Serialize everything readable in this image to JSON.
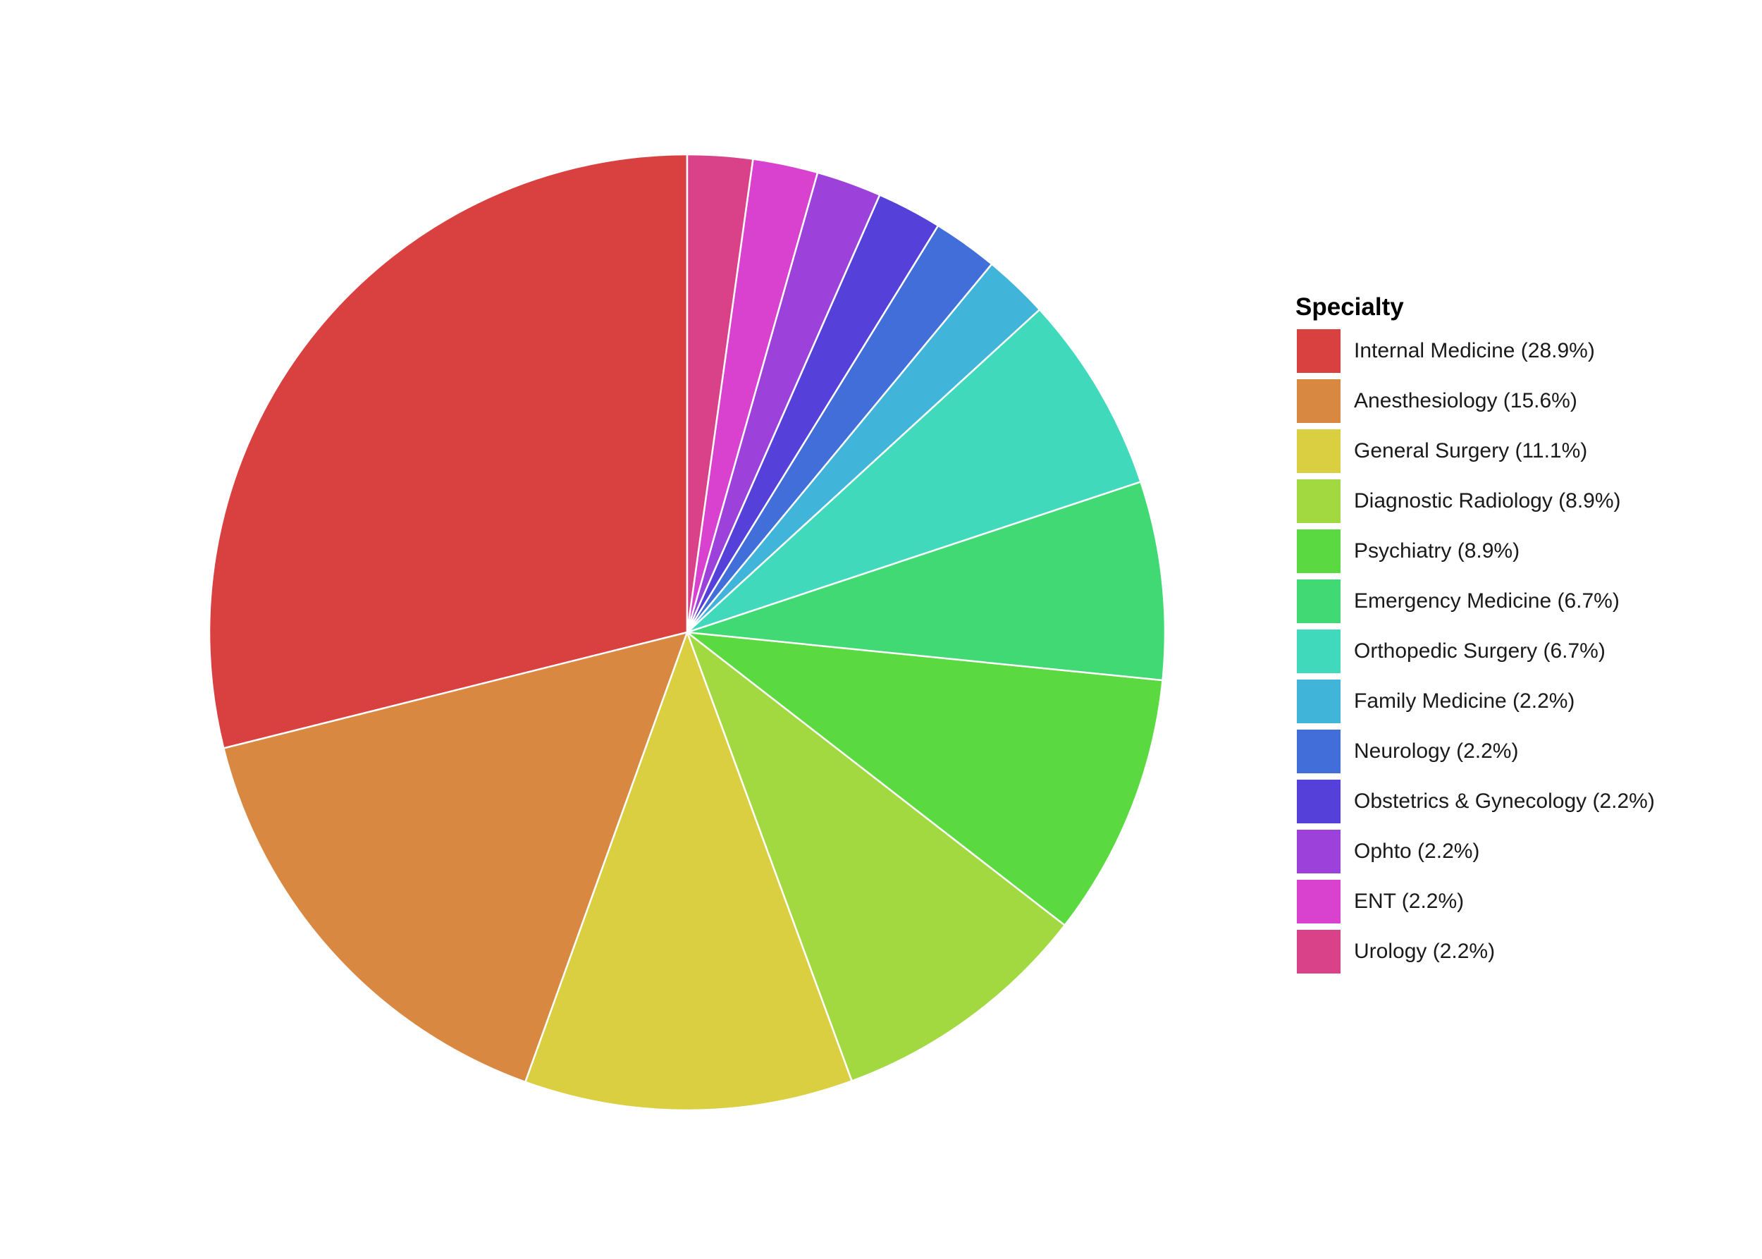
{
  "chart_data": {
    "type": "pie",
    "title": "",
    "legend_title": "Specialty",
    "legend_position": "right",
    "slice_border_color": "#ffffff",
    "background": "#ffffff",
    "start": "12 o'clock",
    "direction": "counter-clockwise",
    "categories": [
      "Internal Medicine",
      "Anesthesiology",
      "General Surgery",
      "Diagnostic Radiology",
      "Psychiatry",
      "Emergency Medicine",
      "Orthopedic Surgery",
      "Family Medicine",
      "Neurology",
      "Obstetrics & Gynecology",
      "Ophto",
      "ENT",
      "Urology"
    ],
    "values": [
      28.9,
      15.6,
      11.1,
      8.9,
      8.9,
      6.7,
      6.7,
      2.2,
      2.2,
      2.2,
      2.2,
      2.2,
      2.2
    ],
    "legend_labels": [
      "Internal Medicine (28.9%)",
      "Anesthesiology (15.6%)",
      "General Surgery (11.1%)",
      "Diagnostic Radiology (8.9%)",
      "Psychiatry (8.9%)",
      "Emergency Medicine (6.7%)",
      "Orthopedic Surgery (6.7%)",
      "Family Medicine (2.2%)",
      "Neurology (2.2%)",
      "Obstetrics & Gynecology (2.2%)",
      "Ophto (2.2%)",
      "ENT (2.2%)",
      "Urology (2.2%)"
    ],
    "colors": [
      "#d94141",
      "#d98841",
      "#d9cf41",
      "#a2d941",
      "#5bd941",
      "#41d974",
      "#41d9bb",
      "#41b5d9",
      "#416ed9",
      "#5541d9",
      "#9c41d9",
      "#d941cf",
      "#d94188"
    ]
  }
}
